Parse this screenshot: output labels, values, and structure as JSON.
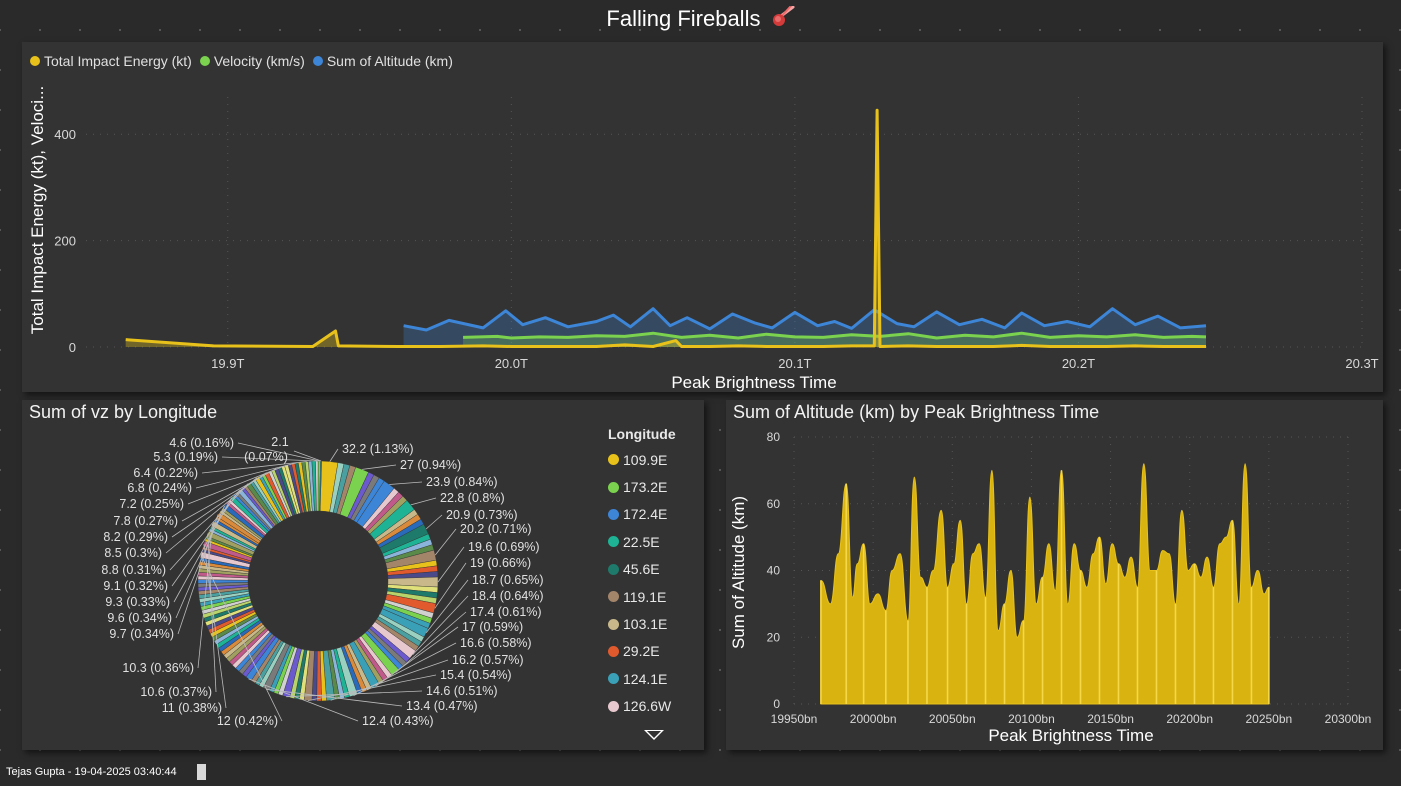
{
  "title": "Falling Fireballs",
  "footer": "Tejas Gupta - 19-04-2025 03:40:44",
  "icons": {
    "title_icon": "fireball-meteor-icon",
    "scroll": "chevron-down-icon"
  },
  "colors": {
    "energy": "#E8C21A",
    "velocity": "#7AD24E",
    "altitude": "#3D85D6",
    "background": "#2a2a2a",
    "panel": "#333333"
  },
  "chart_data": [
    {
      "id": "line_chart",
      "type": "line",
      "title": "",
      "xlabel": "Peak Brightness Time",
      "ylabel": "Total Impact Energy (kt), Veloci...",
      "xlim": [
        19.85,
        20.3
      ],
      "ylim": [
        0,
        470
      ],
      "x_ticks": [
        19.9,
        20.0,
        20.1,
        20.2,
        20.3
      ],
      "x_tick_labels": [
        "19.9T",
        "20.0T",
        "20.1T",
        "20.2T",
        "20.3T"
      ],
      "y_ticks": [
        0,
        200,
        400
      ],
      "y_tick_labels": [
        "0",
        "200",
        "400"
      ],
      "legend_position": "top-left",
      "series": [
        {
          "name": "Total Impact Energy (kt)",
          "color": "#E8C21A",
          "x": [
            19.864,
            19.895,
            19.93,
            19.938,
            19.939,
            19.96,
            19.975,
            19.99,
            20.0,
            20.01,
            20.02,
            20.03,
            20.04,
            20.05,
            20.058,
            20.06,
            20.07,
            20.08,
            20.09,
            20.1,
            20.11,
            20.12,
            20.128,
            20.129,
            20.13,
            20.14,
            20.15,
            20.16,
            20.17,
            20.18,
            20.19,
            20.2,
            20.21,
            20.22,
            20.23,
            20.245
          ],
          "y": [
            14,
            2,
            1,
            30,
            2,
            1,
            1,
            2,
            1,
            1,
            1,
            1,
            4,
            1,
            12,
            1,
            1,
            2,
            1,
            1,
            1,
            2,
            2,
            445,
            1,
            2,
            1,
            1,
            1,
            3,
            1,
            1,
            1,
            2,
            1,
            1
          ]
        },
        {
          "name": "Velocity (km/s)",
          "color": "#7AD24E",
          "x": [
            19.983,
            19.995,
            20.0,
            20.01,
            20.02,
            20.03,
            20.04,
            20.05,
            20.06,
            20.07,
            20.08,
            20.09,
            20.1,
            20.11,
            20.12,
            20.13,
            20.14,
            20.15,
            20.16,
            20.17,
            20.18,
            20.19,
            20.2,
            20.21,
            20.22,
            20.23,
            20.24,
            20.245
          ],
          "y": [
            18,
            20,
            17,
            19,
            18,
            21,
            20,
            26,
            18,
            22,
            17,
            24,
            19,
            18,
            23,
            20,
            25,
            17,
            22,
            19,
            26,
            18,
            21,
            19,
            23,
            18,
            20,
            19
          ]
        },
        {
          "name": "Sum of Altitude (km)",
          "color": "#3D85D6",
          "x": [
            19.962,
            19.97,
            19.978,
            19.99,
            19.998,
            20.004,
            20.012,
            20.02,
            20.03,
            20.036,
            20.042,
            20.05,
            20.056,
            20.062,
            20.07,
            20.078,
            20.086,
            20.092,
            20.1,
            20.108,
            20.114,
            20.12,
            20.128,
            20.136,
            20.142,
            20.15,
            20.158,
            20.166,
            20.174,
            20.18,
            20.188,
            20.196,
            20.204,
            20.212,
            20.22,
            20.228,
            20.236,
            20.245
          ],
          "y": [
            40,
            32,
            50,
            36,
            68,
            42,
            55,
            38,
            48,
            60,
            38,
            72,
            40,
            55,
            34,
            62,
            45,
            36,
            65,
            40,
            48,
            35,
            70,
            44,
            38,
            66,
            42,
            52,
            36,
            64,
            40,
            48,
            38,
            72,
            42,
            58,
            36,
            40
          ]
        }
      ]
    },
    {
      "id": "donut_chart",
      "type": "pie",
      "title": "Sum of vz by Longitude",
      "legend_title": "Longitude",
      "legend_position": "right",
      "legend_entries": [
        {
          "label": "109.9E",
          "color": "#E8C21A"
        },
        {
          "label": "173.2E",
          "color": "#7AD24E"
        },
        {
          "label": "172.4E",
          "color": "#3D85D6"
        },
        {
          "label": "22.5E",
          "color": "#1DB394"
        },
        {
          "label": "45.6E",
          "color": "#1E7A6A"
        },
        {
          "label": "119.1E",
          "color": "#A3856A"
        },
        {
          "label": "103.1E",
          "color": "#C9B98A"
        },
        {
          "label": "29.2E",
          "color": "#E05A2E"
        },
        {
          "label": "124.1E",
          "color": "#3AA0B8"
        },
        {
          "label": "126.6W",
          "color": "#E8C8CF"
        }
      ],
      "slices": [
        {
          "value": 32.2,
          "label": "32.2 (1.13%)"
        },
        {
          "value": 27,
          "label": "27 (0.94%)"
        },
        {
          "value": 23.9,
          "label": "23.9 (0.84%)"
        },
        {
          "value": 22.8,
          "label": "22.8 (0.8%)"
        },
        {
          "value": 20.9,
          "label": "20.9 (0.73%)"
        },
        {
          "value": 20.2,
          "label": "20.2 (0.71%)"
        },
        {
          "value": 19.6,
          "label": "19.6 (0.69%)"
        },
        {
          "value": 19,
          "label": "19 (0.66%)"
        },
        {
          "value": 18.7,
          "label": "18.7 (0.65%)"
        },
        {
          "value": 18.4,
          "label": "18.4 (0.64%)"
        },
        {
          "value": 17.4,
          "label": "17.4 (0.61%)"
        },
        {
          "value": 17,
          "label": "17 (0.59%)"
        },
        {
          "value": 16.6,
          "label": "16.6 (0.58%)"
        },
        {
          "value": 16.2,
          "label": "16.2 (0.57%)"
        },
        {
          "value": 15.4,
          "label": "15.4 (0.54%)"
        },
        {
          "value": 14.6,
          "label": "14.6 (0.51%)"
        },
        {
          "value": 13.4,
          "label": "13.4 (0.47%)"
        },
        {
          "value": 12.4,
          "label": "12.4 (0.43%)"
        },
        {
          "value": 12,
          "label": "12 (0.42%)"
        },
        {
          "value": 11,
          "label": "11 (0.38%)"
        },
        {
          "value": 10.6,
          "label": "10.6 (0.37%)"
        },
        {
          "value": 10.3,
          "label": "10.3 (0.36%)"
        },
        {
          "value": 9.7,
          "label": "9.7 (0.34%)"
        },
        {
          "value": 9.6,
          "label": "9.6 (0.34%)"
        },
        {
          "value": 9.3,
          "label": "9.3 (0.33%)"
        },
        {
          "value": 9.1,
          "label": "9.1 (0.32%)"
        },
        {
          "value": 8.8,
          "label": "8.8 (0.31%)"
        },
        {
          "value": 8.5,
          "label": "8.5 (0.3%)"
        },
        {
          "value": 8.2,
          "label": "8.2 (0.29%)"
        },
        {
          "value": 7.8,
          "label": "7.8 (0.27%)"
        },
        {
          "value": 7.2,
          "label": "7.2 (0.25%)"
        },
        {
          "value": 6.8,
          "label": "6.8 (0.24%)"
        },
        {
          "value": 6.4,
          "label": "6.4 (0.22%)"
        },
        {
          "value": 5.3,
          "label": "5.3 (0.19%)"
        },
        {
          "value": 4.6,
          "label": "4.6 (0.16%)"
        },
        {
          "value": 2.1,
          "label": "2.1 (0.07%)"
        }
      ]
    },
    {
      "id": "area_chart",
      "type": "area",
      "title": "Sum of Altitude (km) by Peak Brightness Time",
      "xlabel": "Peak Brightness Time",
      "ylabel": "Sum of Altitude (km)",
      "color": "#D9B410",
      "xlim": [
        19950,
        20300
      ],
      "ylim": [
        0,
        80
      ],
      "x_ticks": [
        19950,
        20000,
        20050,
        20100,
        20150,
        20200,
        20250,
        20300
      ],
      "x_tick_labels": [
        "19950bn",
        "20000bn",
        "20050bn",
        "20100bn",
        "20150bn",
        "20200bn",
        "20250bn",
        "20300bn"
      ],
      "y_ticks": [
        0,
        20,
        40,
        60,
        80
      ],
      "y_tick_labels": [
        "0",
        "20",
        "40",
        "60",
        "80"
      ],
      "x": [
        19967,
        19973,
        19978,
        19983,
        19987,
        19990,
        19994,
        19998,
        20003,
        20008,
        20012,
        20017,
        20022,
        20026,
        20030,
        20034,
        20038,
        20043,
        20047,
        20051,
        20055,
        20059,
        20063,
        20067,
        20071,
        20075,
        20079,
        20083,
        20087,
        20091,
        20095,
        20099,
        20103,
        20107,
        20111,
        20115,
        20119,
        20123,
        20127,
        20131,
        20135,
        20139,
        20143,
        20147,
        20151,
        20155,
        20159,
        20163,
        20167,
        20171,
        20175,
        20179,
        20183,
        20187,
        20191,
        20195,
        20199,
        20203,
        20207,
        20211,
        20215,
        20219,
        20223,
        20227,
        20231,
        20235,
        20239,
        20243,
        20247,
        20250
      ],
      "y": [
        37,
        30,
        45,
        66,
        32,
        42,
        48,
        30,
        33,
        28,
        40,
        45,
        25,
        68,
        38,
        35,
        40,
        58,
        35,
        42,
        55,
        30,
        45,
        48,
        32,
        70,
        22,
        30,
        40,
        20,
        25,
        62,
        30,
        38,
        48,
        34,
        70,
        30,
        48,
        40,
        35,
        45,
        50,
        36,
        48,
        42,
        38,
        44,
        35,
        72,
        40,
        40,
        46,
        45,
        30,
        58,
        40,
        42,
        38,
        44,
        35,
        48,
        50,
        55,
        30,
        72,
        35,
        40,
        33,
        35
      ]
    }
  ]
}
